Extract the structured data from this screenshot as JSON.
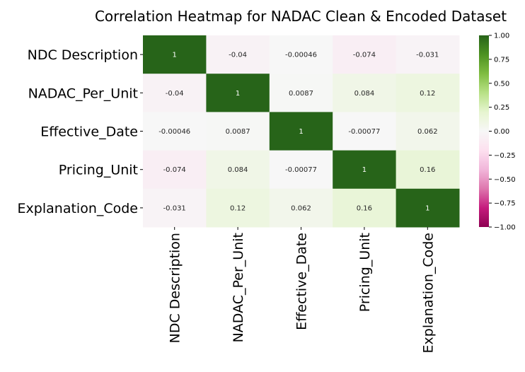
{
  "chart_data": {
    "type": "heatmap",
    "title": "Correlation Heatmap for NADAC Clean & Encoded Dataset",
    "row_labels": [
      "NDC Description",
      "NADAC_Per_Unit",
      "Effective_Date",
      "Pricing_Unit",
      "Explanation_Code"
    ],
    "col_labels": [
      "NDC Description",
      "NADAC_Per_Unit",
      "Effective_Date",
      "Pricing_Unit",
      "Explanation_Code"
    ],
    "values": [
      [
        1,
        -0.04,
        -0.00046,
        -0.074,
        -0.031
      ],
      [
        -0.04,
        1,
        0.0087,
        0.084,
        0.12
      ],
      [
        -0.00046,
        0.0087,
        1,
        -0.00077,
        0.062
      ],
      [
        -0.074,
        0.084,
        -0.00077,
        1,
        0.16
      ],
      [
        -0.031,
        0.12,
        0.062,
        0.16,
        1
      ]
    ],
    "cell_labels": [
      [
        "1",
        "-0.04",
        "-0.00046",
        "-0.074",
        "-0.031"
      ],
      [
        "-0.04",
        "1",
        "0.0087",
        "0.084",
        "0.12"
      ],
      [
        "-0.00046",
        "0.0087",
        "1",
        "-0.00077",
        "0.062"
      ],
      [
        "-0.074",
        "0.084",
        "-0.00077",
        "1",
        "0.16"
      ],
      [
        "-0.031",
        "0.12",
        "0.062",
        "0.16",
        "1"
      ]
    ],
    "colormap": "PiYG",
    "vmin": -1,
    "vmax": 1,
    "colorbar_ticks": [
      "1.00",
      "0.75",
      "0.50",
      "0.25",
      "0.00",
      "−0.25",
      "−0.50",
      "−0.75",
      "−1.00"
    ],
    "colorbar_tick_values": [
      1,
      0.75,
      0.5,
      0.25,
      0,
      -0.25,
      -0.5,
      -0.75,
      -1
    ],
    "colorbar_placement": "right",
    "grid": false
  }
}
